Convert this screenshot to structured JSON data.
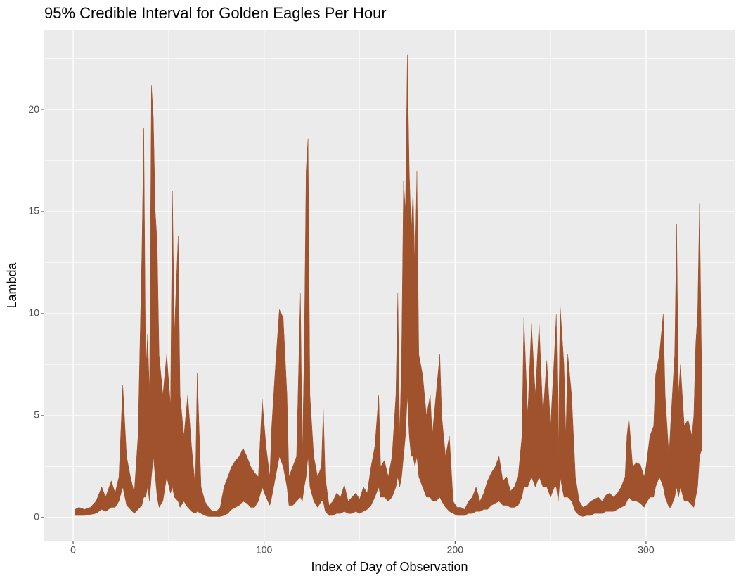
{
  "chart_data": {
    "type": "ribbon",
    "title": "95% Credible Interval for Golden Eagles Per Hour",
    "x_label": "Index of Day of Observation",
    "y_label": "Lambda",
    "color": "#a0522d",
    "grid": true,
    "xlim": [
      -15.1,
      346.4
    ],
    "ylim": [
      -1.14,
      23.9
    ],
    "xticks": [
      0,
      100,
      200,
      300
    ],
    "yticks": [
      0,
      5,
      10,
      15,
      20
    ],
    "x": [
      1,
      3,
      6,
      9,
      12,
      15,
      17,
      20,
      22,
      24,
      26,
      28,
      30,
      32,
      34,
      36,
      37,
      38,
      39,
      40,
      41,
      42,
      43,
      44,
      45,
      47,
      49,
      51,
      52,
      53,
      55,
      56,
      58,
      60,
      62,
      64,
      65,
      67,
      69,
      71,
      73,
      75,
      77,
      79,
      81,
      83,
      85,
      87,
      89,
      91,
      93,
      95,
      97,
      99,
      101,
      103,
      104,
      106,
      108,
      110,
      112,
      113,
      115,
      117,
      119,
      120,
      121,
      122,
      123,
      124,
      126,
      128,
      130,
      131,
      132,
      134,
      136,
      138,
      140,
      142,
      144,
      146,
      148,
      150,
      152,
      154,
      156,
      158,
      160,
      161,
      163,
      165,
      167,
      169,
      170,
      171,
      172,
      173,
      174,
      175,
      176,
      177,
      178,
      179,
      180,
      181,
      183,
      185,
      187,
      188,
      190,
      192,
      193,
      195,
      197,
      199,
      201,
      203,
      205,
      207,
      209,
      211,
      213,
      215,
      217,
      219,
      221,
      223,
      225,
      227,
      229,
      231,
      233,
      235,
      236,
      238,
      240,
      242,
      244,
      246,
      248,
      250,
      252,
      253,
      254,
      255,
      257,
      258,
      259,
      261,
      263,
      265,
      267,
      269,
      271,
      273,
      275,
      277,
      279,
      281,
      283,
      285,
      287,
      289,
      290,
      291,
      293,
      295,
      297,
      299,
      300,
      302,
      304,
      305,
      307,
      309,
      310,
      312,
      313,
      315,
      316,
      317,
      318,
      320,
      322,
      324,
      325,
      326,
      327,
      328,
      329
    ],
    "upper": [
      0.4,
      0.5,
      0.4,
      0.5,
      0.8,
      1.5,
      1.0,
      1.8,
      1.2,
      2.0,
      6.5,
      3.0,
      2.0,
      1.2,
      4.0,
      13.0,
      19.1,
      7.0,
      9.0,
      6.0,
      21.2,
      19.6,
      15.0,
      13.5,
      8.0,
      6.0,
      8.0,
      5.5,
      16.0,
      9.0,
      13.8,
      6.0,
      4.0,
      6.0,
      3.5,
      1.5,
      7.1,
      1.5,
      0.8,
      0.5,
      0.3,
      0.3,
      0.5,
      1.5,
      2.0,
      2.5,
      2.8,
      3.0,
      3.4,
      3.0,
      2.5,
      2.2,
      2.0,
      5.8,
      3.5,
      2.0,
      4.5,
      7.5,
      10.2,
      9.8,
      6.0,
      2.0,
      2.5,
      3.0,
      11.0,
      3.0,
      8.0,
      17.0,
      18.6,
      6.0,
      3.0,
      2.0,
      2.5,
      5.3,
      2.0,
      0.6,
      0.8,
      1.2,
      1.0,
      1.6,
      0.8,
      1.0,
      1.2,
      0.9,
      1.5,
      1.2,
      2.5,
      3.5,
      6.0,
      2.5,
      2.8,
      2.0,
      3.0,
      6.0,
      11.0,
      4.0,
      8.0,
      16.5,
      15.0,
      22.7,
      17.0,
      14.0,
      16.0,
      12.0,
      17.0,
      8.0,
      7.0,
      5.0,
      6.0,
      4.0,
      6.0,
      8.0,
      5.0,
      3.0,
      4.0,
      0.8,
      0.5,
      0.5,
      0.4,
      0.8,
      1.0,
      1.5,
      0.8,
      1.2,
      1.8,
      2.2,
      2.5,
      3.0,
      1.8,
      2.0,
      1.3,
      1.5,
      2.0,
      4.0,
      9.8,
      5.0,
      9.5,
      6.0,
      9.5,
      5.0,
      7.7,
      4.5,
      8.0,
      10.0,
      3.0,
      10.4,
      7.5,
      4.0,
      8.0,
      6.0,
      2.0,
      0.8,
      0.5,
      0.6,
      0.8,
      0.9,
      1.0,
      0.8,
      1.1,
      1.2,
      1.0,
      1.2,
      1.5,
      2.0,
      4.0,
      4.9,
      2.5,
      2.7,
      2.6,
      2.0,
      2.5,
      4.0,
      4.5,
      7.0,
      8.0,
      10.0,
      6.0,
      3.0,
      4.8,
      8.0,
      14.4,
      6.0,
      7.5,
      4.5,
      4.8,
      4.0,
      5.0,
      8.5,
      10.0,
      15.4,
      8.0
    ],
    "lower": [
      0.1,
      0.1,
      0.1,
      0.15,
      0.2,
      0.4,
      0.3,
      0.5,
      0.5,
      0.8,
      1.5,
      0.6,
      0.4,
      0.2,
      0.4,
      0.6,
      1.0,
      1.0,
      1.5,
      0.8,
      2.0,
      3.0,
      2.0,
      1.0,
      0.5,
      0.8,
      2.0,
      1.2,
      1.5,
      1.0,
      0.8,
      0.5,
      0.8,
      0.5,
      0.3,
      0.2,
      0.3,
      0.2,
      0.1,
      0.05,
      0.05,
      0.05,
      0.05,
      0.1,
      0.2,
      0.4,
      0.5,
      0.6,
      0.8,
      0.7,
      0.5,
      0.5,
      0.8,
      1.5,
      1.0,
      0.6,
      1.0,
      2.0,
      3.0,
      2.5,
      1.5,
      0.6,
      0.6,
      0.8,
      1.0,
      0.8,
      1.5,
      2.0,
      3.0,
      1.5,
      0.8,
      0.5,
      0.8,
      0.8,
      0.3,
      0.1,
      0.1,
      0.2,
      0.2,
      0.3,
      0.2,
      0.2,
      0.3,
      0.2,
      0.3,
      0.4,
      0.6,
      1.0,
      1.5,
      1.0,
      1.0,
      0.8,
      1.0,
      1.5,
      2.0,
      1.5,
      2.0,
      3.0,
      4.0,
      6.0,
      4.0,
      3.0,
      3.0,
      2.5,
      3.0,
      2.0,
      1.5,
      1.0,
      1.0,
      0.8,
      0.8,
      1.0,
      0.8,
      0.5,
      0.3,
      0.2,
      0.1,
      0.1,
      0.1,
      0.2,
      0.2,
      0.3,
      0.3,
      0.4,
      0.4,
      0.6,
      0.7,
      0.8,
      0.6,
      0.6,
      0.5,
      0.5,
      0.6,
      1.0,
      1.5,
      1.5,
      2.0,
      1.5,
      2.0,
      1.5,
      1.5,
      1.0,
      1.5,
      1.5,
      0.8,
      2.0,
      1.0,
      1.0,
      1.0,
      0.8,
      0.3,
      0.1,
      0.05,
      0.1,
      0.1,
      0.2,
      0.2,
      0.2,
      0.3,
      0.3,
      0.3,
      0.4,
      0.5,
      0.6,
      0.8,
      1.0,
      0.8,
      0.8,
      0.7,
      0.5,
      0.7,
      1.0,
      1.0,
      1.5,
      2.0,
      1.5,
      1.0,
      0.5,
      0.5,
      1.0,
      1.5,
      1.0,
      1.5,
      0.8,
      0.8,
      0.6,
      0.5,
      1.0,
      1.5,
      3.0,
      3.3
    ]
  }
}
